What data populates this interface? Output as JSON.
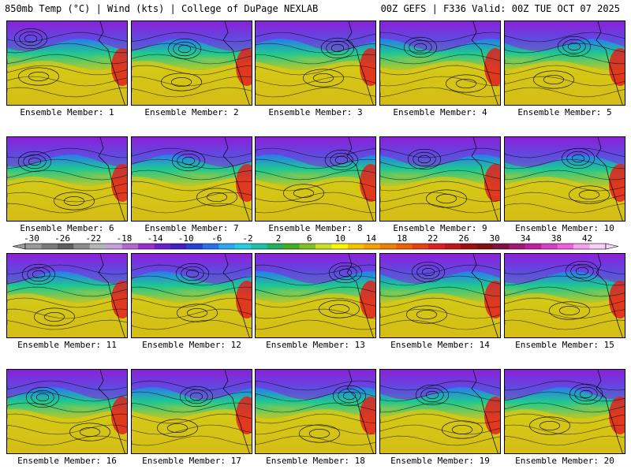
{
  "header": {
    "left": "850mb Temp (°C) | Wind (kts) | College of DuPage NEXLAB",
    "right": "00Z GEFS | F336 Valid: 00Z TUE OCT 07 2025"
  },
  "members": [
    "Ensemble Member: 1",
    "Ensemble Member: 2",
    "Ensemble Member: 3",
    "Ensemble Member: 4",
    "Ensemble Member: 5",
    "Ensemble Member: 6",
    "Ensemble Member: 7",
    "Ensemble Member: 8",
    "Ensemble Member: 9",
    "Ensemble Member: 10",
    "Ensemble Member: 11",
    "Ensemble Member: 12",
    "Ensemble Member: 13",
    "Ensemble Member: 14",
    "Ensemble Member: 15",
    "Ensemble Member: 16",
    "Ensemble Member: 17",
    "Ensemble Member: 18",
    "Ensemble Member: 19",
    "Ensemble Member: 20"
  ],
  "colorbar": {
    "labels": [
      "-30",
      "-26",
      "-22",
      "-18",
      "-14",
      "-10",
      "-6",
      "-2",
      "2",
      "6",
      "10",
      "14",
      "18",
      "22",
      "26",
      "30",
      "34",
      "38",
      "42"
    ],
    "colors": [
      "#9a9a9a",
      "#7a7a7a",
      "#5e5e5e",
      "#8c8c8c",
      "#b6b6b6",
      "#c6a2d8",
      "#b06ad0",
      "#9a2fd0",
      "#6a1fcf",
      "#4020c0",
      "#2840d8",
      "#2a70e8",
      "#28a8f0",
      "#20d0e0",
      "#20c0a8",
      "#20b060",
      "#40b020",
      "#80c020",
      "#c8e020",
      "#f8f800",
      "#f8c000",
      "#f8a000",
      "#f08000",
      "#f06000",
      "#e84010",
      "#e02020",
      "#c01818",
      "#a01010",
      "#801010",
      "#801040",
      "#a01870",
      "#c020a0",
      "#d840c8",
      "#f060e0",
      "#f8a0f0",
      "#f8d0f8"
    ]
  },
  "colors": {
    "cold": "#8a20d8",
    "cool": "#2a80e8",
    "mid": "#20c890",
    "warm": "#f8c800",
    "hot": "#e02020",
    "contour": "#000000"
  }
}
